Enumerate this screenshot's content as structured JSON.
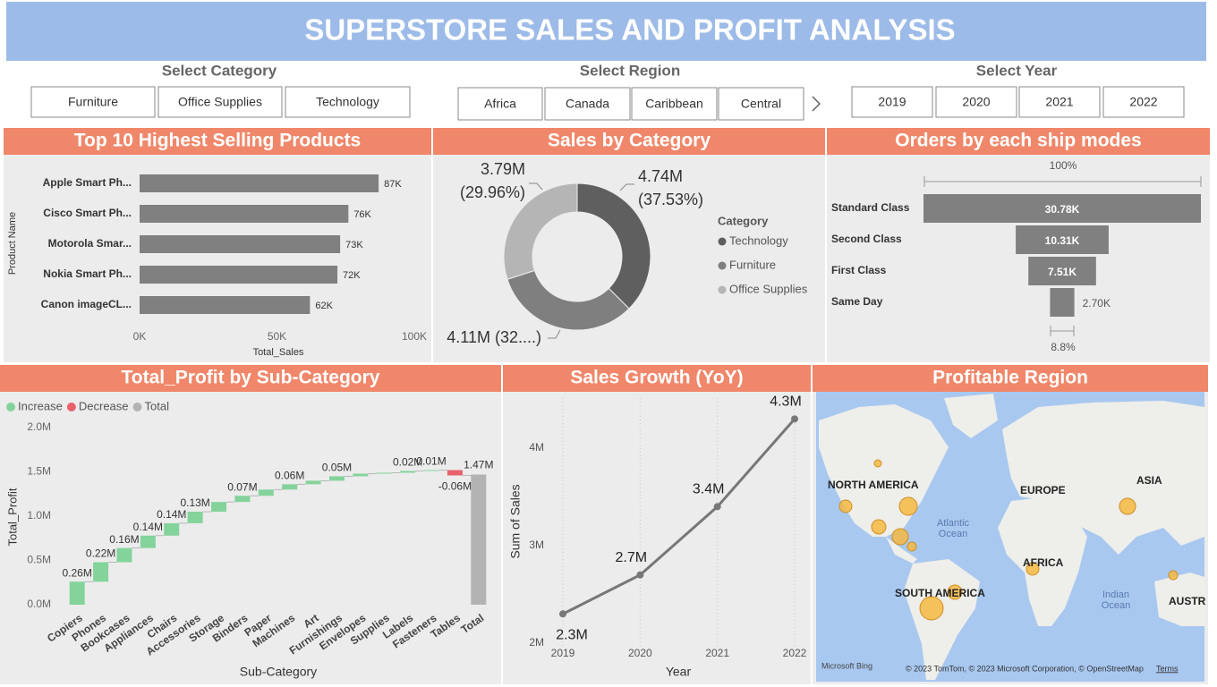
{
  "header": {
    "title": "SUPERSTORE SALES AND PROFIT ANALYSIS"
  },
  "slicers": [
    {
      "title": "Select Category",
      "items": [
        "Furniture",
        "Office Supplies",
        "Technology"
      ]
    },
    {
      "title": "Select Region",
      "items": [
        "Africa",
        "Canada",
        "Caribbean",
        "Central"
      ]
    },
    {
      "title": "Select Year",
      "items": [
        "2019",
        "2020",
        "2021",
        "2022"
      ]
    }
  ],
  "chart_data": [
    {
      "type": "bar",
      "orientation": "horizontal",
      "title": "Top 10 Highest Selling Products",
      "categories": [
        "Apple Smart Ph...",
        "Cisco Smart Ph...",
        "Motorola Smar...",
        "Nokia Smart Ph...",
        "Canon imageCL..."
      ],
      "values": [
        87000,
        76000,
        73000,
        72000,
        62000
      ],
      "value_labels": [
        "87K",
        "76K",
        "73K",
        "72K",
        "62K"
      ],
      "color": "#808080",
      "xlim": [
        0,
        100000
      ],
      "xticks": [
        {
          "value": 0,
          "label": "0K"
        },
        {
          "value": 50000,
          "label": "50K"
        },
        {
          "value": 100000,
          "label": "100K"
        }
      ],
      "x_label": "Total_Sales",
      "y_label": "Product Name"
    },
    {
      "type": "pie",
      "donut": true,
      "title": "Sales by Category",
      "legend_title": "Category",
      "categories": [
        "Technology",
        "Furniture",
        "Office Supplies"
      ],
      "values": [
        4.74,
        4.11,
        3.79
      ],
      "value_labels": [
        [
          "4.74M",
          "(37.53%)"
        ],
        [
          "4.11M (32....)"
        ],
        [
          "3.79M",
          "(29.96%)"
        ]
      ],
      "colors": [
        "#5f5f5f",
        "#7f7f7f",
        "#b5b5b5"
      ]
    },
    {
      "type": "funnel",
      "title": "Orders by each ship modes",
      "categories": [
        "Standard Class",
        "Second Class",
        "First Class",
        "Same Day"
      ],
      "values": [
        30780,
        10310,
        7510,
        2700
      ],
      "value_labels": [
        "30.78K",
        "10.31K",
        "7.51K",
        "2.70K"
      ],
      "color": "#808080",
      "top_label": "100%",
      "bottom_label": "8.8%"
    },
    {
      "type": "waterfall",
      "title": "Total_Profit by Sub-Category",
      "categories": [
        "Copiers",
        "Phones",
        "Bookcases",
        "Appliances",
        "Chairs",
        "Accessories",
        "Storage",
        "Binders",
        "Paper",
        "Machines",
        "Art",
        "Furnishings",
        "Envelopes",
        "Supplies",
        "Labels",
        "Fasteners",
        "Tables"
      ],
      "values": [
        0.26,
        0.22,
        0.16,
        0.14,
        0.14,
        0.13,
        0.11,
        0.07,
        0.07,
        0.06,
        0.04,
        0.05,
        0.03,
        0.01,
        0.02,
        0.01,
        -0.06
      ],
      "value_labels": [
        "0.26M",
        "0.22M",
        "0.16M",
        "0.14M",
        "0.14M",
        "0.13M",
        null,
        "0.07M",
        null,
        "0.06M",
        null,
        "0.05M",
        null,
        null,
        "0.02M",
        "0.01M",
        "-0.06M"
      ],
      "total": {
        "label": "Total",
        "value": 1.47,
        "value_label": "1.47M"
      },
      "legend": [
        {
          "name": "Increase",
          "color": "#83d39b"
        },
        {
          "name": "Decrease",
          "color": "#e8616b"
        },
        {
          "name": "Total",
          "color": "#b3b3b3"
        }
      ],
      "ylim": [
        0,
        2
      ],
      "yticks": [
        {
          "value": 0,
          "label": "0.0M"
        },
        {
          "value": 0.5,
          "label": "0.5M"
        },
        {
          "value": 1,
          "label": "1.0M"
        },
        {
          "value": 1.5,
          "label": "1.5M"
        },
        {
          "value": 2,
          "label": "2.0M"
        }
      ],
      "x_label": "Sub-Category",
      "y_label": "Total_Profit"
    },
    {
      "type": "line",
      "title": "Sales Growth (YoY)",
      "x": [
        2019,
        2020,
        2021,
        2022
      ],
      "values": [
        2.3,
        2.7,
        3.4,
        4.3
      ],
      "value_labels": [
        "2.3M",
        "2.7M",
        "3.4M",
        "4.3M"
      ],
      "color": "#777777",
      "xlim": [
        2019,
        2022
      ],
      "xticks": [
        2019,
        2020,
        2021,
        2022
      ],
      "ylim": [
        2,
        4.45
      ],
      "yticks": [
        {
          "value": 2,
          "label": "2M"
        },
        {
          "value": 3,
          "label": "3M"
        },
        {
          "value": 4,
          "label": "4M"
        }
      ],
      "x_label": "Year",
      "y_label": "Sum of Sales",
      "grid": true
    }
  ],
  "map": {
    "title": "Profitable Region",
    "labels": [
      "NORTH AMERICA",
      "EUROPE",
      "ASIA",
      "AFRICA",
      "SOUTH AMERICA",
      "AUSTR"
    ],
    "oceans": [
      [
        "Atlantic",
        "Ocean"
      ],
      [
        "Indian",
        "Ocean"
      ]
    ],
    "logo": "Microsoft Bing",
    "attribution": "© 2023 TomTom, © 2023 Microsoft Corporation, © OpenStreetMap",
    "terms": "Terms"
  }
}
